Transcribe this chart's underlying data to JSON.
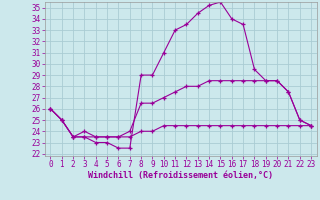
{
  "xlabel": "Windchill (Refroidissement éolien,°C)",
  "bg_color": "#cce8ec",
  "grid_color": "#aaccd4",
  "line_color": "#990099",
  "xlim": [
    -0.5,
    23.5
  ],
  "ylim": [
    21.8,
    35.5
  ],
  "yticks": [
    22,
    23,
    24,
    25,
    26,
    27,
    28,
    29,
    30,
    31,
    32,
    33,
    34,
    35
  ],
  "xticks": [
    0,
    1,
    2,
    3,
    4,
    5,
    6,
    7,
    8,
    9,
    10,
    11,
    12,
    13,
    14,
    15,
    16,
    17,
    18,
    19,
    20,
    21,
    22,
    23
  ],
  "line1_x": [
    0,
    1,
    2,
    3,
    4,
    5,
    6,
    7,
    8,
    9,
    10,
    11,
    12,
    13,
    14,
    15,
    16,
    17,
    18,
    19,
    20,
    21,
    22,
    23
  ],
  "line1_y": [
    26.0,
    25.0,
    23.5,
    23.5,
    23.0,
    23.0,
    22.5,
    22.5,
    29.0,
    29.0,
    31.0,
    33.0,
    33.5,
    34.5,
    35.2,
    35.5,
    34.0,
    33.5,
    29.5,
    28.5,
    28.5,
    27.5,
    25.0,
    24.5
  ],
  "line2_x": [
    0,
    1,
    2,
    3,
    4,
    5,
    6,
    7,
    8,
    9,
    10,
    11,
    12,
    13,
    14,
    15,
    16,
    17,
    18,
    19,
    20,
    21,
    22,
    23
  ],
  "line2_y": [
    26.0,
    25.0,
    23.5,
    24.0,
    23.5,
    23.5,
    23.5,
    24.0,
    26.5,
    26.5,
    27.0,
    27.5,
    28.0,
    28.0,
    28.5,
    28.5,
    28.5,
    28.5,
    28.5,
    28.5,
    28.5,
    27.5,
    25.0,
    24.5
  ],
  "line3_x": [
    0,
    1,
    2,
    3,
    4,
    5,
    6,
    7,
    8,
    9,
    10,
    11,
    12,
    13,
    14,
    15,
    16,
    17,
    18,
    19,
    20,
    21,
    22,
    23
  ],
  "line3_y": [
    26.0,
    25.0,
    23.5,
    23.5,
    23.5,
    23.5,
    23.5,
    23.5,
    24.0,
    24.0,
    24.5,
    24.5,
    24.5,
    24.5,
    24.5,
    24.5,
    24.5,
    24.5,
    24.5,
    24.5,
    24.5,
    24.5,
    24.5,
    24.5
  ],
  "tick_fontsize": 5.5,
  "xlabel_fontsize": 6.0
}
